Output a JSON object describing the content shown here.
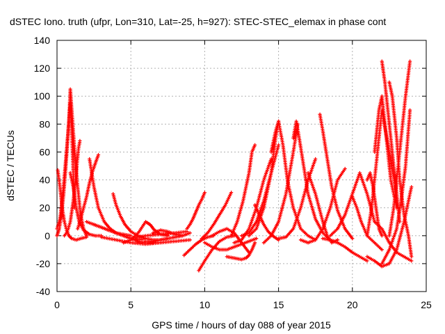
{
  "chart_data": {
    "type": "scatter",
    "title": "dSTEC Iono. truth (ufpr, Lon=310, Lat=-25, h=927): STEC-STEC_elemax in phase cont",
    "xlabel": "GPS time / hours of day 088 of year 2015",
    "ylabel": "dSTEC  / TECUs",
    "xlim": [
      0,
      25
    ],
    "ylim": [
      -40,
      140
    ],
    "x_ticks": [
      0,
      5,
      10,
      15,
      20,
      25
    ],
    "y_ticks": [
      -40,
      -20,
      0,
      20,
      40,
      60,
      80,
      100,
      120,
      140
    ],
    "grid": true,
    "marker": "+",
    "color": "#ff0000",
    "series": [
      {
        "x": [
          0.0,
          0.2,
          0.4,
          0.6,
          0.8,
          0.9,
          1.0,
          1.2,
          1.4,
          1.6,
          1.8,
          2.0
        ],
        "y": [
          5,
          12,
          30,
          55,
          80,
          105,
          90,
          60,
          35,
          15,
          5,
          0
        ]
      },
      {
        "x": [
          0.0,
          0.15,
          0.3,
          0.45,
          0.6,
          0.75,
          0.9,
          1.0,
          1.1,
          1.2
        ],
        "y": [
          0,
          5,
          15,
          30,
          50,
          75,
          95,
          75,
          45,
          20
        ]
      },
      {
        "x": [
          0.05,
          0.2,
          0.35,
          0.5,
          0.65,
          0.8,
          1.0,
          1.3,
          1.6,
          2.0
        ],
        "y": [
          47,
          35,
          20,
          10,
          4,
          0,
          -2,
          -3,
          -2,
          -1
        ]
      },
      {
        "x": [
          0.5,
          0.7,
          0.9,
          1.1,
          1.3,
          1.45,
          1.55
        ],
        "y": [
          0,
          3,
          10,
          25,
          45,
          62,
          68
        ]
      },
      {
        "x": [
          0.9,
          1.1,
          1.3,
          1.5,
          1.8,
          2.2,
          2.6,
          3.0
        ],
        "y": [
          45,
          35,
          20,
          10,
          4,
          1,
          0,
          0
        ]
      },
      {
        "x": [
          1.4,
          1.6,
          1.8,
          2.0,
          2.2,
          2.4,
          2.6,
          2.8
        ],
        "y": [
          5,
          12,
          20,
          28,
          38,
          46,
          52,
          58
        ]
      },
      {
        "x": [
          2.2,
          2.5,
          2.8,
          3.2,
          3.6,
          4.0,
          4.5,
          5.0,
          5.5,
          6.0
        ],
        "y": [
          55,
          35,
          20,
          10,
          5,
          2,
          0,
          -2,
          -3,
          -2
        ]
      },
      {
        "x": [
          2.0,
          2.5,
          3.0,
          3.5,
          4.0,
          4.5,
          5.0
        ],
        "y": [
          10,
          8,
          6,
          4,
          2,
          1,
          0
        ]
      },
      {
        "x": [
          2.5,
          3.0,
          3.5,
          4.0,
          4.5,
          5.0,
          5.5,
          6.0,
          6.5
        ],
        "y": [
          8,
          6,
          4,
          2,
          0,
          -2,
          -4,
          -5,
          -5
        ]
      },
      {
        "x": [
          3.8,
          4.0,
          4.3,
          4.6,
          5.0,
          5.5,
          6.0,
          6.5,
          7.0,
          7.5
        ],
        "y": [
          30,
          22,
          14,
          8,
          3,
          0,
          -2,
          -3,
          -3,
          -2
        ]
      },
      {
        "x": [
          3.0,
          4.0,
          5.0,
          6.0,
          7.0,
          8.0,
          9.0
        ],
        "y": [
          -1,
          -3,
          -5,
          -6,
          -5,
          -4,
          -3
        ]
      },
      {
        "x": [
          4.5,
          5.0,
          5.5,
          6.0,
          6.3,
          6.6,
          7.0,
          7.5
        ],
        "y": [
          -5,
          -3,
          2,
          10,
          8,
          4,
          1,
          0
        ]
      },
      {
        "x": [
          5.0,
          6.0,
          7.0,
          8.0,
          8.8
        ],
        "y": [
          -2,
          0,
          1,
          2,
          3
        ]
      },
      {
        "x": [
          6.0,
          6.5,
          7.0,
          7.5,
          8.0,
          8.5,
          9.0
        ],
        "y": [
          -4,
          -4,
          -3,
          -2,
          -1,
          0,
          2
        ]
      },
      {
        "x": [
          6.5,
          7.0,
          7.5,
          8.0,
          8.5
        ],
        "y": [
          2,
          4,
          3,
          1,
          0
        ]
      },
      {
        "x": [
          8.8,
          9.0,
          9.2,
          9.4,
          9.6,
          9.8,
          10.0
        ],
        "y": [
          5,
          8,
          12,
          17,
          22,
          26,
          31
        ]
      },
      {
        "x": [
          8.6,
          9.0,
          9.4,
          9.8,
          10.2,
          10.6
        ],
        "y": [
          -14,
          -10,
          -6,
          -3,
          -1,
          0
        ]
      },
      {
        "x": [
          9.6,
          10.0,
          10.5,
          11.0,
          11.5,
          12.0
        ],
        "y": [
          -25,
          -18,
          -10,
          -4,
          -1,
          0
        ]
      },
      {
        "x": [
          10.0,
          10.5,
          11.0,
          11.5,
          12.0,
          12.5,
          13.0,
          13.5
        ],
        "y": [
          -5,
          -8,
          -10,
          -10,
          -8,
          -6,
          -4,
          -2
        ]
      },
      {
        "x": [
          9.8,
          10.2,
          10.6,
          11.0,
          11.4,
          11.8
        ],
        "y": [
          -2,
          2,
          8,
          15,
          22,
          31
        ]
      },
      {
        "x": [
          10.5,
          11.0,
          11.5,
          12.0,
          12.5,
          13.0
        ],
        "y": [
          0,
          3,
          5,
          2,
          -5,
          -12
        ]
      },
      {
        "x": [
          11.5,
          12.0,
          12.5,
          12.8,
          13.0,
          13.2,
          13.4
        ],
        "y": [
          -15,
          -16,
          -17,
          -16,
          -14,
          -10,
          -5
        ]
      },
      {
        "x": [
          11.8,
          12.2,
          12.6,
          13.0,
          13.2,
          13.4
        ],
        "y": [
          0,
          10,
          25,
          45,
          60,
          65
        ]
      },
      {
        "x": [
          12.0,
          12.5,
          13.0,
          13.5,
          14.0,
          14.5
        ],
        "y": [
          -5,
          -3,
          5,
          20,
          40,
          55
        ]
      },
      {
        "x": [
          12.5,
          13.0,
          13.5,
          14.0,
          14.5,
          15.0
        ],
        "y": [
          0,
          2,
          10,
          25,
          45,
          65
        ]
      },
      {
        "x": [
          13.4,
          13.7,
          14.0,
          14.3,
          14.6,
          15.0
        ],
        "y": [
          22,
          15,
          8,
          3,
          0,
          -3
        ]
      },
      {
        "x": [
          13.0,
          13.5,
          14.0,
          14.5,
          14.8,
          15.0
        ],
        "y": [
          0,
          5,
          20,
          45,
          70,
          82
        ]
      },
      {
        "x": [
          14.5,
          14.8,
          15.0,
          15.3,
          15.6,
          16.0,
          16.5,
          17.0,
          17.5
        ],
        "y": [
          60,
          75,
          82,
          65,
          40,
          20,
          5,
          0,
          -3
        ]
      },
      {
        "x": [
          14.0,
          14.5,
          15.0,
          15.5,
          16.0,
          16.3
        ],
        "y": [
          -5,
          0,
          10,
          30,
          60,
          80
        ]
      },
      {
        "x": [
          16.0,
          16.2,
          16.4,
          16.7,
          17.0,
          17.5,
          18.0,
          18.5,
          19.0
        ],
        "y": [
          70,
          82,
          70,
          50,
          30,
          12,
          2,
          -3,
          -5
        ]
      },
      {
        "x": [
          15.0,
          15.5,
          16.0,
          16.5,
          17.0,
          17.5
        ],
        "y": [
          -2,
          -1,
          5,
          20,
          40,
          55
        ]
      },
      {
        "x": [
          16.5,
          17.0,
          17.5,
          18.0,
          18.5,
          19.0,
          19.5
        ],
        "y": [
          -3,
          -5,
          -3,
          5,
          20,
          40,
          48
        ]
      },
      {
        "x": [
          17.0,
          17.5,
          18.0,
          18.3,
          18.6,
          19.0
        ],
        "y": [
          45,
          30,
          10,
          0,
          -5,
          -3
        ]
      },
      {
        "x": [
          17.8,
          18.0,
          18.3,
          18.6,
          19.0,
          19.5,
          20.0
        ],
        "y": [
          87,
          75,
          55,
          35,
          18,
          5,
          -2
        ]
      },
      {
        "x": [
          18.0,
          18.5,
          19.0,
          19.5,
          20.0,
          20.5,
          21.0
        ],
        "y": [
          -2,
          -3,
          -5,
          -8,
          -12,
          -15,
          -18
        ]
      },
      {
        "x": [
          18.5,
          19.0,
          19.5,
          20.0,
          20.5,
          21.0,
          21.5
        ],
        "y": [
          0,
          5,
          15,
          30,
          45,
          30,
          10
        ]
      },
      {
        "x": [
          20.0,
          20.3,
          20.6,
          21.0,
          21.5,
          22.0
        ],
        "y": [
          28,
          20,
          10,
          0,
          -5,
          -10
        ]
      },
      {
        "x": [
          21.0,
          21.2,
          21.4,
          21.6,
          21.8,
          22.0
        ],
        "y": [
          40,
          45,
          35,
          20,
          5,
          0
        ]
      },
      {
        "x": [
          21.0,
          21.3,
          21.6,
          22.0,
          22.5,
          23.0
        ],
        "y": [
          0,
          20,
          50,
          90,
          60,
          30
        ]
      },
      {
        "x": [
          21.5,
          21.8,
          22.0,
          22.3,
          22.6,
          23.0
        ],
        "y": [
          60,
          90,
          100,
          70,
          40,
          20
        ]
      },
      {
        "x": [
          22.0,
          22.2,
          22.4,
          22.6,
          22.8,
          23.0,
          23.2
        ],
        "y": [
          125,
          110,
          90,
          70,
          50,
          30,
          10
        ]
      },
      {
        "x": [
          22.5,
          22.8,
          23.0,
          23.3,
          23.6,
          23.9
        ],
        "y": [
          0,
          20,
          40,
          70,
          100,
          125
        ]
      },
      {
        "x": [
          22.0,
          22.5,
          23.0,
          23.3,
          23.6,
          23.9
        ],
        "y": [
          -20,
          -10,
          5,
          25,
          50,
          90
        ]
      },
      {
        "x": [
          22.5,
          22.7,
          23.0,
          23.2,
          23.5,
          23.8,
          24.0
        ],
        "y": [
          110,
          100,
          70,
          40,
          15,
          0,
          -15
        ]
      },
      {
        "x": [
          21.0,
          21.5,
          22.0,
          22.5,
          23.0,
          23.5,
          24.0
        ],
        "y": [
          -15,
          -18,
          -22,
          -20,
          -10,
          10,
          35
        ]
      },
      {
        "x": [
          21.5,
          22.0,
          22.5,
          23.0,
          23.5,
          24.0
        ],
        "y": [
          10,
          5,
          -5,
          -12,
          -15,
          -18
        ]
      }
    ]
  }
}
